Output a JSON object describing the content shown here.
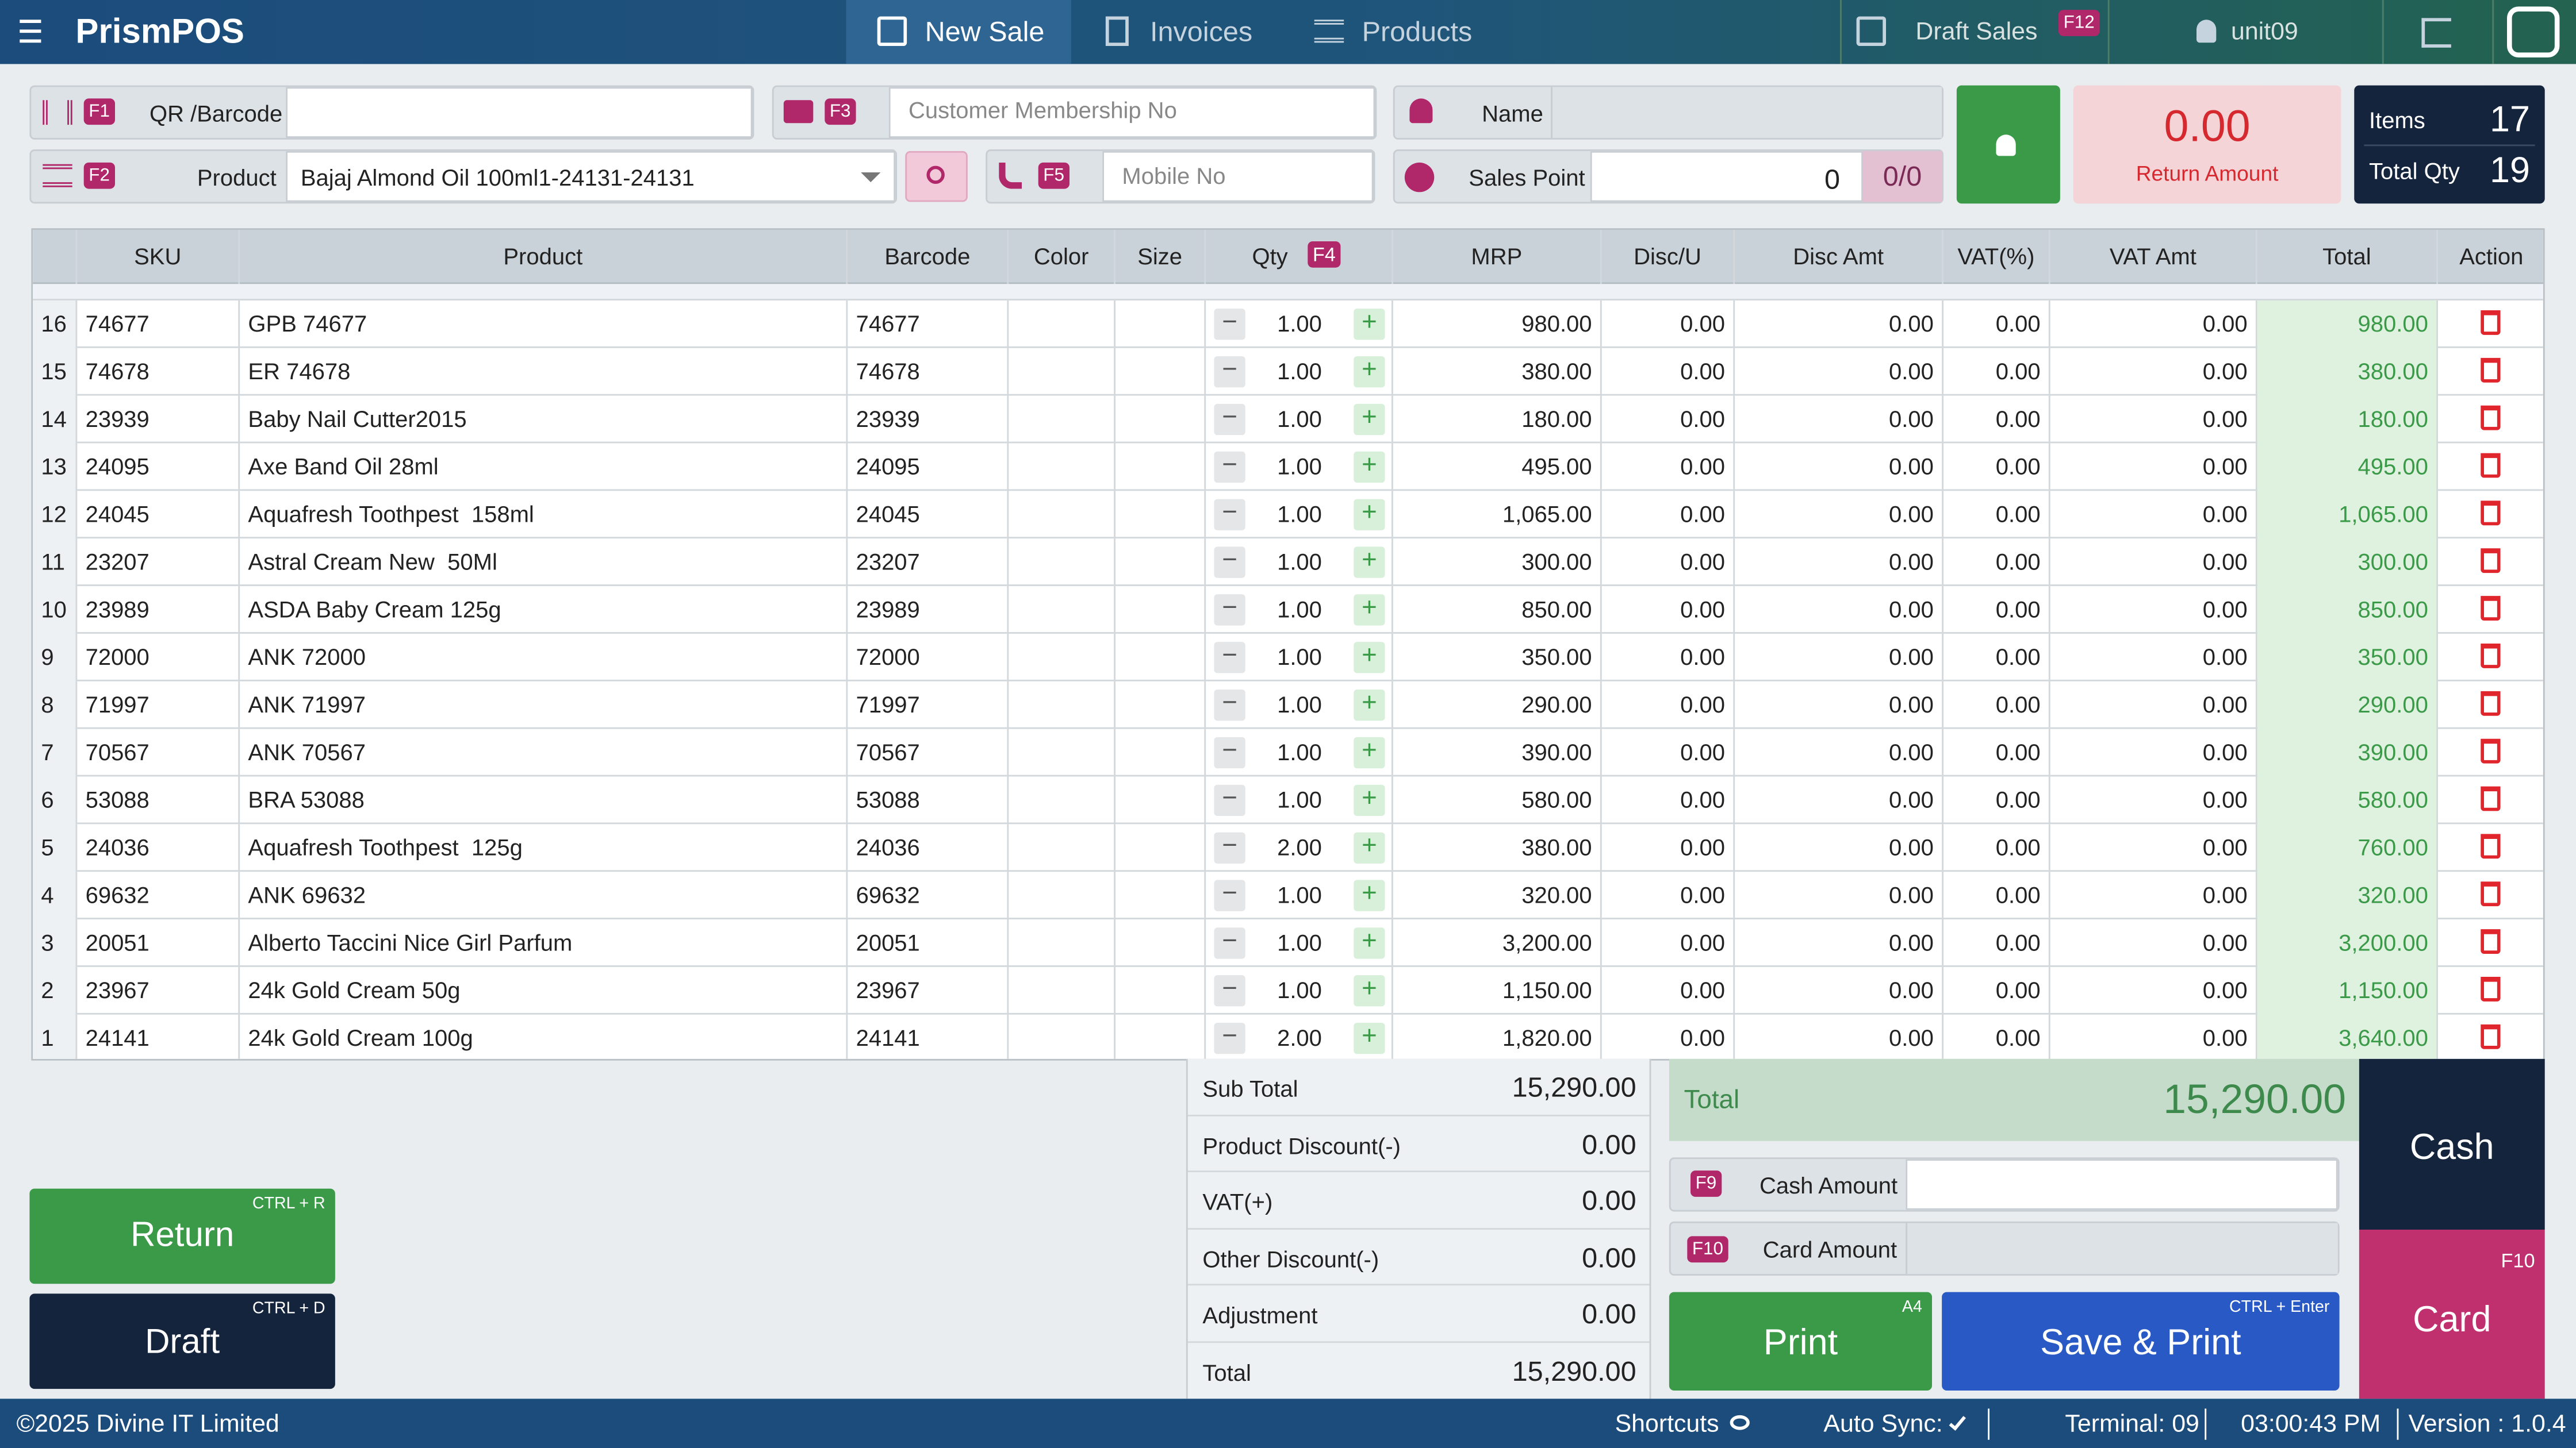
{
  "header": {
    "app": "PrismPOS",
    "tabs": [
      "New Sale",
      "Invoices",
      "Products"
    ],
    "draft": "Draft Sales",
    "draft_key": "F12",
    "user": "unit09"
  },
  "form": {
    "qr_key": "F1",
    "qr_label": "QR /Barcode",
    "member_key": "F3",
    "member_placeholder": "Customer Membership No",
    "name_label": "Name",
    "product_key": "F2",
    "product_label": "Product",
    "product_value": "Bajaj Almond Oil 100ml1-24131-24131",
    "mobile_key": "F5",
    "mobile_placeholder": "Mobile No",
    "sales_point_label": "Sales Point",
    "sales_point_value": "0",
    "points": "0/0",
    "return_amount": "0.00",
    "return_label": "Return Amount",
    "items_label": "Items",
    "items": "17",
    "total_qty_label": "Total Qty",
    "total_qty": "19"
  },
  "table": {
    "columns": [
      "SKU",
      "Product",
      "Barcode",
      "Color",
      "Size",
      "Qty",
      "MRP",
      "Disc/U",
      "Disc Amt",
      "VAT(%)",
      "VAT Amt",
      "Total",
      "Action"
    ],
    "qty_key": "F4",
    "rows": [
      [
        "16",
        "74677",
        "GPB 74677",
        "74677",
        "1.00",
        "980.00",
        "0.00",
        "0.00",
        "0.00",
        "0.00",
        "980.00"
      ],
      [
        "15",
        "74678",
        "ER 74678",
        "74678",
        "1.00",
        "380.00",
        "0.00",
        "0.00",
        "0.00",
        "0.00",
        "380.00"
      ],
      [
        "14",
        "23939",
        "Baby Nail Cutter2015",
        "23939",
        "1.00",
        "180.00",
        "0.00",
        "0.00",
        "0.00",
        "0.00",
        "180.00"
      ],
      [
        "13",
        "24095",
        "Axe Band Oil 28ml",
        "24095",
        "1.00",
        "495.00",
        "0.00",
        "0.00",
        "0.00",
        "0.00",
        "495.00"
      ],
      [
        "12",
        "24045",
        "Aquafresh Toothpest  158ml",
        "24045",
        "1.00",
        "1,065.00",
        "0.00",
        "0.00",
        "0.00",
        "0.00",
        "1,065.00"
      ],
      [
        "11",
        "23207",
        "Astral Cream New  50Ml",
        "23207",
        "1.00",
        "300.00",
        "0.00",
        "0.00",
        "0.00",
        "0.00",
        "300.00"
      ],
      [
        "10",
        "23989",
        "ASDA Baby Cream 125g",
        "23989",
        "1.00",
        "850.00",
        "0.00",
        "0.00",
        "0.00",
        "0.00",
        "850.00"
      ],
      [
        "9",
        "72000",
        "ANK 72000",
        "72000",
        "1.00",
        "350.00",
        "0.00",
        "0.00",
        "0.00",
        "0.00",
        "350.00"
      ],
      [
        "8",
        "71997",
        "ANK 71997",
        "71997",
        "1.00",
        "290.00",
        "0.00",
        "0.00",
        "0.00",
        "0.00",
        "290.00"
      ],
      [
        "7",
        "70567",
        "ANK 70567",
        "70567",
        "1.00",
        "390.00",
        "0.00",
        "0.00",
        "0.00",
        "0.00",
        "390.00"
      ],
      [
        "6",
        "53088",
        "BRA 53088",
        "53088",
        "1.00",
        "580.00",
        "0.00",
        "0.00",
        "0.00",
        "0.00",
        "580.00"
      ],
      [
        "5",
        "24036",
        "Aquafresh Toothpest  125g",
        "24036",
        "2.00",
        "380.00",
        "0.00",
        "0.00",
        "0.00",
        "0.00",
        "760.00"
      ],
      [
        "4",
        "69632",
        "ANK 69632",
        "69632",
        "1.00",
        "320.00",
        "0.00",
        "0.00",
        "0.00",
        "0.00",
        "320.00"
      ],
      [
        "3",
        "20051",
        "Alberto Taccini Nice Girl Parfum",
        "20051",
        "1.00",
        "3,200.00",
        "0.00",
        "0.00",
        "0.00",
        "0.00",
        "3,200.00"
      ],
      [
        "2",
        "23967",
        "24k Gold Cream 50g",
        "23967",
        "1.00",
        "1,150.00",
        "0.00",
        "0.00",
        "0.00",
        "0.00",
        "1,150.00"
      ],
      [
        "1",
        "24141",
        "24k Gold Cream 100g",
        "24141",
        "2.00",
        "1,820.00",
        "0.00",
        "0.00",
        "0.00",
        "0.00",
        "3,640.00"
      ]
    ]
  },
  "summary": [
    {
      "label": "Sub Total",
      "value": "15,290.00"
    },
    {
      "label": "Product Discount(-)",
      "value": "0.00"
    },
    {
      "label": "VAT(+)",
      "value": "0.00"
    },
    {
      "label": "Other Discount(-)",
      "value": "0.00"
    },
    {
      "label": "Adjustment",
      "value": "0.00"
    },
    {
      "label": "Total",
      "value": "15,290.00"
    }
  ],
  "payment": {
    "total_label": "Total",
    "total": "15,290.00",
    "cash_key": "F9",
    "cash_label": "Cash Amount",
    "card_key": "F10",
    "card_label": "Card Amount",
    "print": "Print",
    "print_hint": "A4",
    "save": "Save & Print",
    "save_hint": "CTRL + Enter",
    "cash": "Cash",
    "card": "Card",
    "card_hint": "F10"
  },
  "buttons": {
    "return": "Return",
    "return_hint": "CTRL + R",
    "draft": "Draft",
    "draft_hint": "CTRL + D"
  },
  "footer": {
    "copyright": "©2025 Divine IT Limited",
    "shortcuts": "Shortcuts",
    "sync": "Auto Sync:",
    "terminal": "Terminal: 09",
    "time": "03:00:43 PM",
    "version": "Version : 1.0.4"
  }
}
